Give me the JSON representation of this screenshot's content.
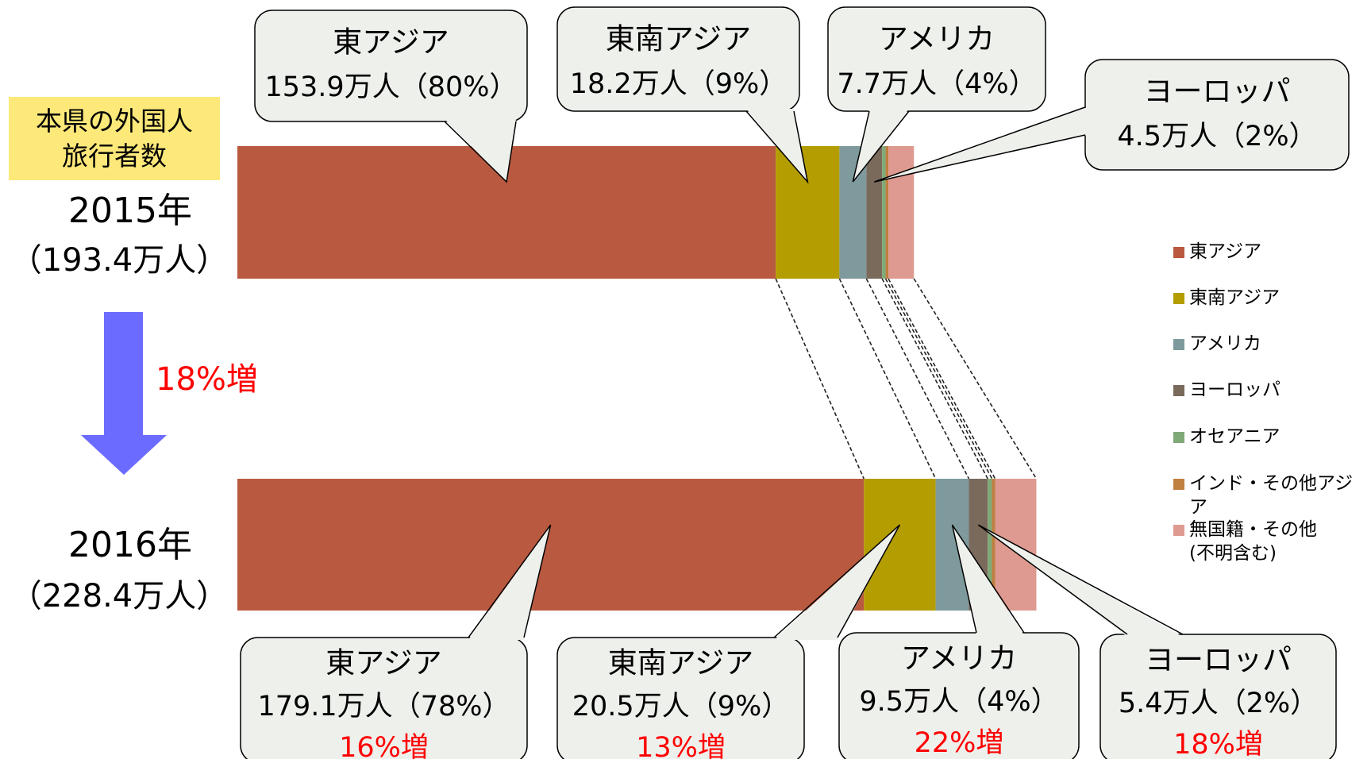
{
  "chart_data": {
    "type": "bar",
    "orientation": "horizontal",
    "stacked": true,
    "xlim": [
      0,
      300
    ],
    "heading": "本県の外国人\n旅行者数",
    "categories": [
      "2015年",
      "2016年"
    ],
    "total_labels": [
      "（193.4万人）",
      "（228.4万人）"
    ],
    "growth_annotation": "18%増",
    "series": [
      {
        "name": "東アジア",
        "color": "#b95a40",
        "values": [
          153.9,
          179.1
        ],
        "value_labels": [
          "153.9万人（80%）",
          "179.1万人（78%）"
        ],
        "growth_labels": [
          null,
          "16%増"
        ]
      },
      {
        "name": "東南アジア",
        "color": "#b39d00",
        "values": [
          18.2,
          20.5
        ],
        "value_labels": [
          "18.2万人（9%）",
          "20.5万人（9%）"
        ],
        "growth_labels": [
          null,
          "13%増"
        ]
      },
      {
        "name": "アメリカ",
        "color": "#7f9a9c",
        "values": [
          7.7,
          9.5
        ],
        "value_labels": [
          "7.7万人（4%）",
          "9.5万人（4%）"
        ],
        "growth_labels": [
          null,
          "22%増"
        ]
      },
      {
        "name": "ヨーロッパ",
        "color": "#7a6a5c",
        "values": [
          4.5,
          5.4
        ],
        "value_labels": [
          "4.5万人（2%）",
          "5.4万人（2%）"
        ],
        "growth_labels": [
          null,
          "18%増"
        ]
      },
      {
        "name": "オセアニア",
        "color": "#7faa78",
        "values": [
          1.0,
          1.2
        ]
      },
      {
        "name": "インド・その他アジア",
        "color": "#c08040",
        "values": [
          0.8,
          0.9
        ]
      },
      {
        "name": "無国籍・その他\n(不明含む)",
        "color": "#de9a90",
        "values": [
          7.3,
          11.8
        ]
      }
    ]
  }
}
